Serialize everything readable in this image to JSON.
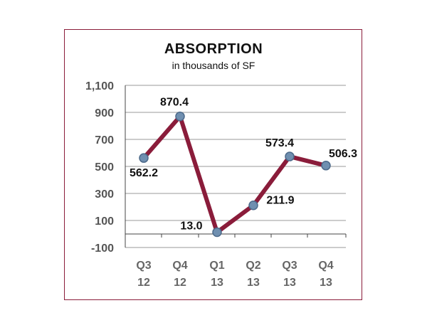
{
  "chart_data": {
    "type": "line",
    "title": "ABSORPTION",
    "subtitle": "in thousands of SF",
    "xlabel": "",
    "ylabel": "",
    "categories": [
      [
        "Q3",
        "12"
      ],
      [
        "Q4",
        "12"
      ],
      [
        "Q1",
        "13"
      ],
      [
        "Q2",
        "13"
      ],
      [
        "Q3",
        "13"
      ],
      [
        "Q4",
        "13"
      ]
    ],
    "series": [
      {
        "values": [
          562.2,
          870.4,
          13.0,
          211.9,
          573.4,
          506.3
        ],
        "labels": [
          "562.2",
          "870.4",
          "13.0",
          "211.9",
          "573.4",
          "506.3"
        ]
      }
    ],
    "ylim": [
      -100,
      1100
    ],
    "yticks": [
      {
        "value": 1100,
        "label": "1,100"
      },
      {
        "value": 900,
        "label": "900"
      },
      {
        "value": 700,
        "label": "700"
      },
      {
        "value": 500,
        "label": "500"
      },
      {
        "value": 300,
        "label": "300"
      },
      {
        "value": 100,
        "label": "100"
      },
      {
        "value": -100,
        "label": "-100"
      }
    ],
    "grid": true,
    "legend": "none",
    "colors": {
      "line": "#8a1c3a",
      "marker_fill": "#6f8fb0",
      "marker_stroke": "#4d6a8a",
      "grid": "#999999",
      "frame": "#8a1c3a"
    }
  }
}
